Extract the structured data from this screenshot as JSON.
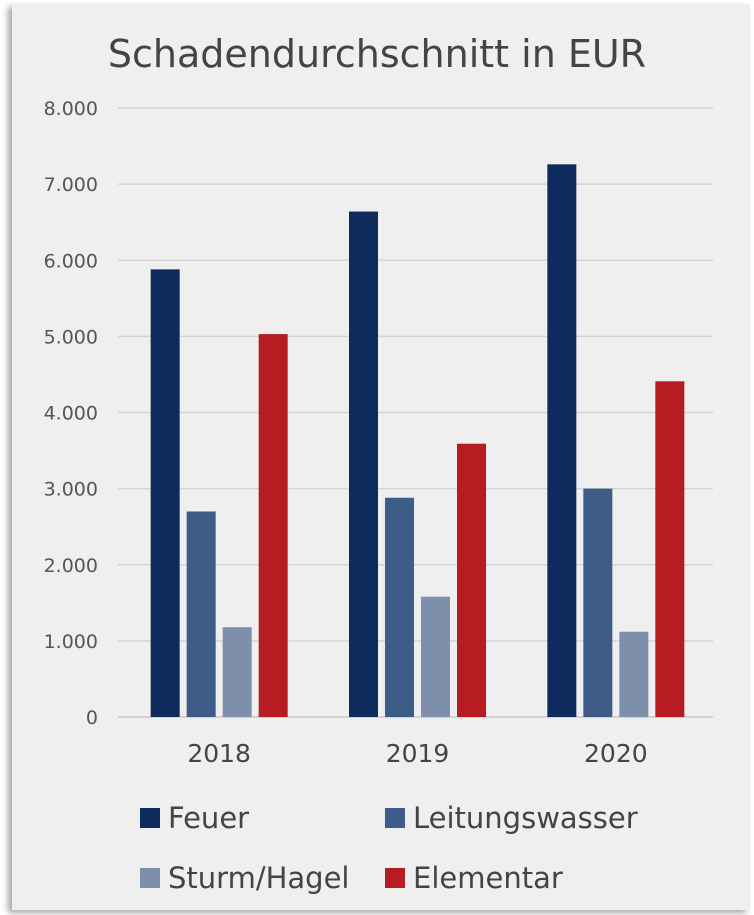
{
  "chart_data": {
    "type": "bar",
    "title": "Schadendurchschnitt in EUR",
    "xlabel": "",
    "ylabel": "",
    "categories": [
      "2018",
      "2019",
      "2020"
    ],
    "ylim": [
      0,
      8000
    ],
    "yticks": [
      0,
      1000,
      2000,
      3000,
      4000,
      5000,
      6000,
      7000,
      8000
    ],
    "ytick_labels": [
      "0",
      "1.000",
      "2.000",
      "3.000",
      "4.000",
      "5.000",
      "6.000",
      "7.000",
      "8.000"
    ],
    "grid": true,
    "legend_position": "bottom",
    "series": [
      {
        "name": "Feuer",
        "color": "#0d2b5c",
        "values": [
          5880,
          6640,
          7260
        ]
      },
      {
        "name": "Leitungswasser",
        "color": "#3d5d88",
        "values": [
          2700,
          2880,
          3000
        ]
      },
      {
        "name": "Sturm/Hagel",
        "color": "#7d8faa",
        "values": [
          1180,
          1580,
          1120
        ]
      },
      {
        "name": "Elementar",
        "color": "#b61c22",
        "values": [
          5030,
          3590,
          4410
        ]
      }
    ]
  }
}
